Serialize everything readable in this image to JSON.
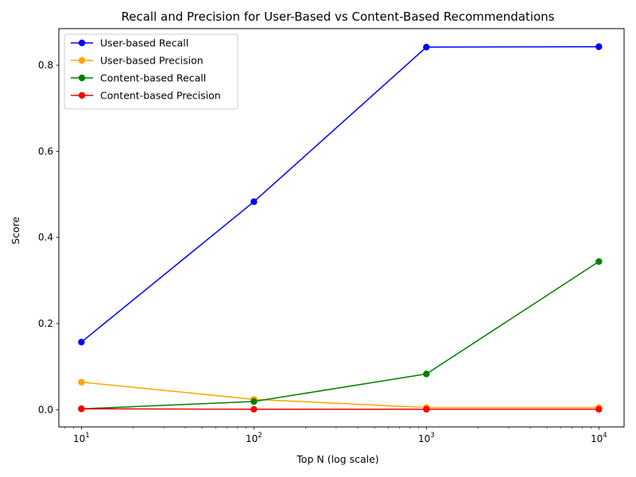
{
  "chart_data": {
    "type": "line",
    "title": "Recall and Precision for User-Based vs Content-Based Recommendations",
    "xlabel": "Top N (log scale)",
    "ylabel": "Score",
    "xscale": "log",
    "xlim": [
      7.4,
      14000
    ],
    "ylim": [
      -0.04,
      0.885
    ],
    "x": [
      10,
      100,
      1000,
      10000
    ],
    "x_tick_labels": [
      {
        "base": "10",
        "exp": "1"
      },
      {
        "base": "10",
        "exp": "2"
      },
      {
        "base": "10",
        "exp": "3"
      },
      {
        "base": "10",
        "exp": "4"
      }
    ],
    "y_ticks": [
      0.0,
      0.2,
      0.4,
      0.6,
      0.8
    ],
    "y_tick_labels": [
      "0.0",
      "0.2",
      "0.4",
      "0.6",
      "0.8"
    ],
    "grid": false,
    "legend_position": "top-left",
    "series": [
      {
        "name": "User-based Recall",
        "color": "#0000ff",
        "values": [
          0.157,
          0.483,
          0.842,
          0.843
        ]
      },
      {
        "name": "User-based Precision",
        "color": "#ffa500",
        "values": [
          0.064,
          0.024,
          0.005,
          0.005
        ]
      },
      {
        "name": "Content-based Recall",
        "color": "#008000",
        "values": [
          0.002,
          0.019,
          0.083,
          0.344
        ]
      },
      {
        "name": "Content-based Precision",
        "color": "#ff0000",
        "values": [
          0.002,
          0.001,
          0.001,
          0.001
        ]
      }
    ]
  }
}
